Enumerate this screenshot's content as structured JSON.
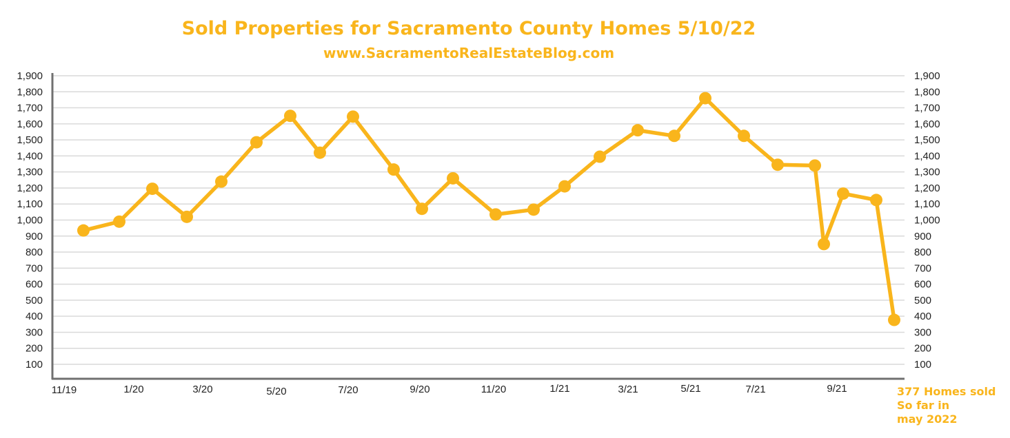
{
  "chart_data": {
    "type": "line",
    "title": "Sold Properties for Sacramento County Homes 5/10/22",
    "subtitle": "www.SacramentoRealEstateBlog.com",
    "x_tick_labels": [
      "11/19",
      "1/20",
      "3/20",
      "5/20",
      "7/20",
      "9/20",
      "11/20",
      "1/21",
      "3/21",
      "5/21",
      "7/21",
      "9/21"
    ],
    "y_tick_labels": [
      "1,900",
      "1,800",
      "1,700",
      "1,600",
      "1,500",
      "1,400",
      "1,300",
      "1,200",
      "1,100",
      "1,000",
      "900",
      "800",
      "700",
      "600",
      "500",
      "400",
      "300",
      "200",
      "100"
    ],
    "ylim": [
      0,
      1900
    ],
    "grid": true,
    "series": [
      {
        "x": [
          "11/19",
          "12/19",
          "1/20",
          "2/20",
          "3/20",
          "4/20",
          "5/20",
          "6/20",
          "7/20",
          "8/20",
          "9/20",
          "10/20",
          "11/20",
          "12/20",
          "1/21",
          "2/21",
          "3/21",
          "4/21",
          "5/21",
          "6/21",
          "7/21",
          "8/21",
          "9/21",
          "10/21",
          "11/21",
          "5/22"
        ],
        "values": [
          935,
          990,
          1195,
          1020,
          1240,
          1485,
          1650,
          1420,
          1645,
          1315,
          1070,
          1260,
          1035,
          1065,
          1210,
          1395,
          1560,
          1525,
          1760,
          1525,
          1345,
          1340,
          850,
          1165,
          1125,
          377
        ]
      }
    ],
    "annotation_lines": [
      "377 Homes sold",
      "So  far in",
      "may 2022"
    ],
    "colors": {
      "line": "#F9B51C",
      "title": "#F9B51C",
      "axis": "#707070",
      "grid": "#d9d9d9"
    }
  }
}
